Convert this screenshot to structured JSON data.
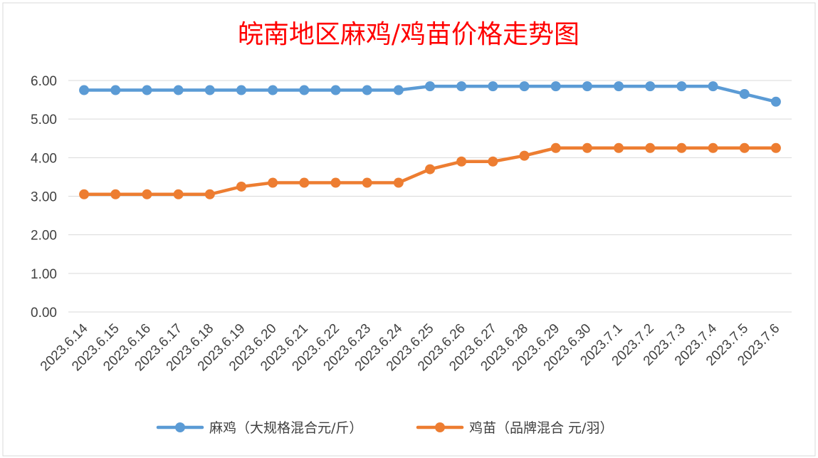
{
  "chart_data": {
    "type": "line",
    "title": "皖南地区麻鸡/鸡苗价格走势图",
    "categories": [
      "2023.6.14",
      "2023.6.15",
      "2023.6.16",
      "2023.6.17",
      "2023.6.18",
      "2023.6.19",
      "2023.6.20",
      "2023.6.21",
      "2023.6.22",
      "2023.6.23",
      "2023.6.24",
      "2023.6.25",
      "2023.6.26",
      "2023.6.27",
      "2023.6.28",
      "2023.6.29",
      "2023.6.30",
      "2023.7.1",
      "2023.7.2",
      "2023.7.3",
      "2023.7.4",
      "2023.7.5",
      "2023.7.6"
    ],
    "series": [
      {
        "name": "麻鸡（大规格混合元/斤）",
        "color": "#5b9bd5",
        "values": [
          5.75,
          5.75,
          5.75,
          5.75,
          5.75,
          5.75,
          5.75,
          5.75,
          5.75,
          5.75,
          5.75,
          5.85,
          5.85,
          5.85,
          5.85,
          5.85,
          5.85,
          5.85,
          5.85,
          5.85,
          5.85,
          5.65,
          5.45
        ]
      },
      {
        "name": "鸡苗（品牌混合 元/羽）",
        "color": "#ed7d31",
        "values": [
          3.05,
          3.05,
          3.05,
          3.05,
          3.05,
          3.25,
          3.35,
          3.35,
          3.35,
          3.35,
          3.35,
          3.7,
          3.9,
          3.9,
          4.05,
          4.25,
          4.25,
          4.25,
          4.25,
          4.25,
          4.25,
          4.25,
          4.25
        ]
      }
    ],
    "ylim": [
      0,
      6
    ],
    "yticks": [
      "0.00",
      "1.00",
      "2.00",
      "3.00",
      "4.00",
      "5.00",
      "6.00"
    ],
    "grid": true,
    "legend_position": "bottom",
    "xlabel": "",
    "ylabel": ""
  },
  "colors": {
    "title": "#ff0000",
    "grid": "#d9d9d9",
    "text": "#404040"
  }
}
